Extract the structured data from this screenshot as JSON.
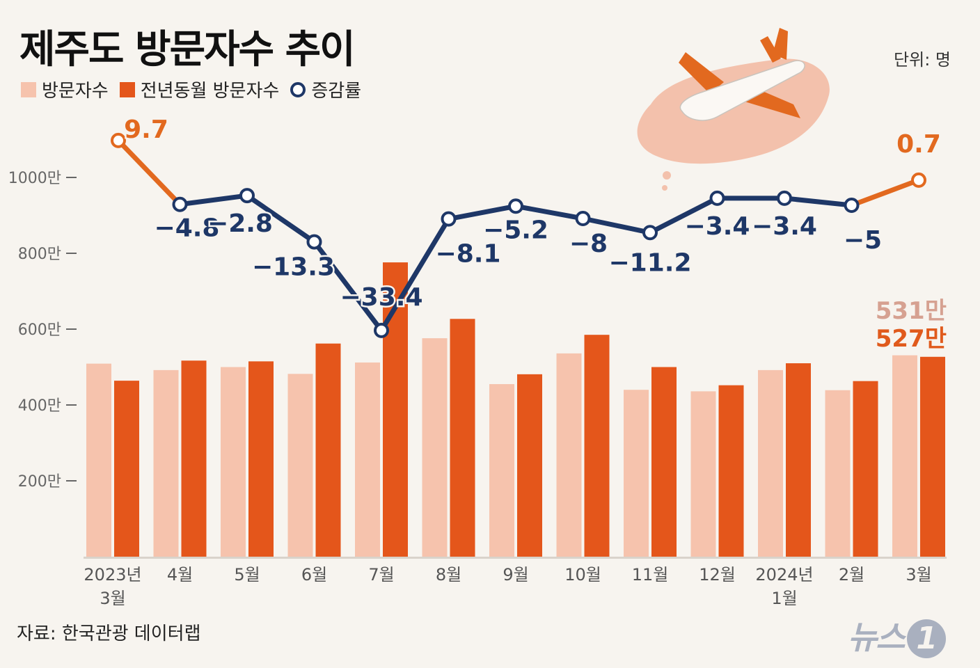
{
  "title": "제주도 방문자수 추이",
  "unit": "단위: 명",
  "legend": {
    "visitors": "방문자수",
    "prev_year": "전년동월 방문자수",
    "rate": "증감률"
  },
  "source": "자료: 한국관광 데이터랩",
  "logo": {
    "text": "뉴스",
    "mark": "1"
  },
  "colors": {
    "visitors": "#f6c3ad",
    "prev_year": "#e4561b",
    "rate_line": "#1e3767",
    "rate_highlight": "#e2691f",
    "last_visitors_label": "#d6a191",
    "last_prev_label": "#e05a1c"
  },
  "chart_data": {
    "type": "bar",
    "categories": [
      "2023년\n3월",
      "4월",
      "5월",
      "6월",
      "7월",
      "8월",
      "9월",
      "10월",
      "11월",
      "12월",
      "2024년\n1월",
      "2월",
      "3월"
    ],
    "y_ticks": [
      "200만",
      "400만",
      "600만",
      "800만",
      "1000만"
    ],
    "y_tick_values": [
      200,
      400,
      600,
      800,
      1000
    ],
    "ylim": [
      0,
      1000
    ],
    "y_unit": "만",
    "series": [
      {
        "name": "방문자수",
        "values": [
          509,
          492,
          500,
          482,
          512,
          576,
          455,
          536,
          440,
          436,
          492,
          439,
          531
        ]
      },
      {
        "name": "전년동월 방문자수",
        "values": [
          464,
          517,
          515,
          562,
          776,
          627,
          481,
          585,
          500,
          452,
          510,
          463,
          527
        ]
      },
      {
        "name": "증감률",
        "values": [
          9.7,
          -4.8,
          -2.8,
          -13.3,
          -33.4,
          -8.1,
          -5.2,
          -8,
          -11.2,
          -3.4,
          -3.4,
          -5,
          0.7
        ]
      }
    ],
    "rate_labels": [
      "9.7",
      "−4.8",
      "−2.8",
      "−13.3",
      "−33.4",
      "−8.1",
      "−5.2",
      "−8",
      "−11.2",
      "−3.4",
      "−3.4",
      "−5",
      "0.7"
    ],
    "end_labels": {
      "visitors": "531만",
      "prev_year": "527만"
    }
  }
}
